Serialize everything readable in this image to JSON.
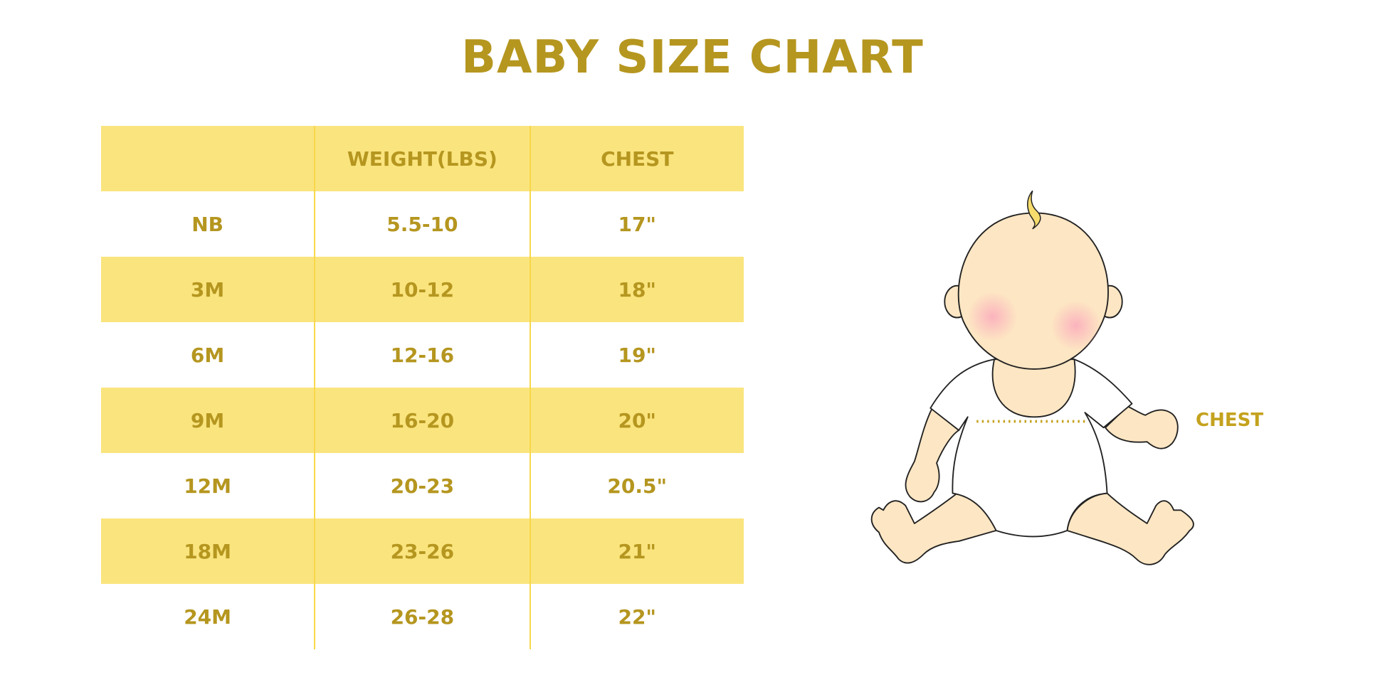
{
  "title": "BABY SIZE CHART",
  "table": {
    "headers": [
      "",
      "WEIGHT(LBS)",
      "CHEST"
    ],
    "rows": [
      [
        "NB",
        "5.5-10",
        "17\""
      ],
      [
        "3M",
        "10-12",
        "18\""
      ],
      [
        "6M",
        "12-16",
        "19\""
      ],
      [
        "9M",
        "16-20",
        "20\""
      ],
      [
        "12M",
        "20-23",
        "20.5\""
      ],
      [
        "18M",
        "23-26",
        "21\""
      ],
      [
        "24M",
        "26-28",
        "22\""
      ]
    ]
  },
  "illustration": {
    "chest_label": "CHEST"
  },
  "colors": {
    "text": "#b5961f",
    "row_fill": "#fae47e",
    "divider": "#f7d84a"
  }
}
